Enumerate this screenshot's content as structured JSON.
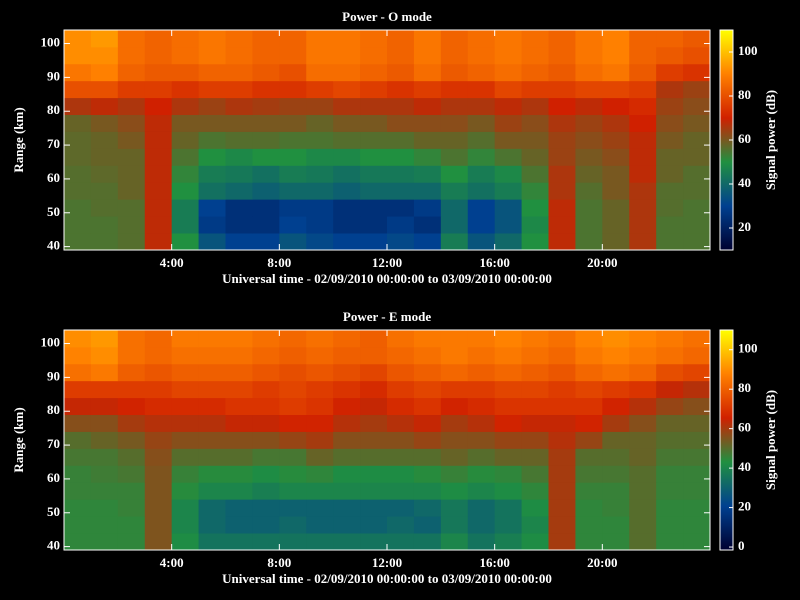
{
  "chart_data": [
    {
      "type": "heatmap",
      "title": "Power - O mode",
      "xlabel": "Universal time - 02/09/2010 00:00:00 to 03/09/2010 00:00:00",
      "ylabel": "Range (km)",
      "colorbar_label": "Signal power (dB)",
      "xlim": [
        0,
        24
      ],
      "xticks": [
        {
          "value": 4,
          "label": "4:00"
        },
        {
          "value": 8,
          "label": "8:00"
        },
        {
          "value": 12,
          "label": "12:00"
        },
        {
          "value": 16,
          "label": "16:00"
        },
        {
          "value": 20,
          "label": "20:00"
        }
      ],
      "ylim": [
        39,
        104
      ],
      "yticks": [
        40,
        50,
        60,
        70,
        80,
        90,
        100
      ],
      "clim": [
        10,
        110
      ],
      "cticks": [
        20,
        40,
        60,
        80,
        100
      ],
      "colormap": [
        "#000030",
        "#004090",
        "#209040",
        "#d02000",
        "#ff8000",
        "#ffff00"
      ],
      "xbins": [
        0,
        1,
        2,
        3,
        4,
        5,
        6,
        7,
        8,
        9,
        10,
        11,
        12,
        13,
        14,
        15,
        16,
        17,
        18,
        19,
        20,
        21,
        22,
        23,
        24
      ],
      "ybins": [
        39,
        44,
        49,
        54,
        59,
        64,
        69,
        74,
        79,
        84,
        89,
        94,
        99,
        104
      ],
      "z": [
        [
          55,
          55,
          56,
          68,
          50,
          35,
          30,
          30,
          35,
          32,
          30,
          30,
          32,
          30,
          45,
          35,
          40,
          50,
          68,
          55,
          58,
          66,
          55,
          55
        ],
        [
          55,
          55,
          56,
          68,
          45,
          28,
          25,
          25,
          30,
          28,
          25,
          25,
          28,
          25,
          40,
          30,
          35,
          48,
          68,
          55,
          58,
          66,
          55,
          55
        ],
        [
          55,
          56,
          56,
          68,
          45,
          30,
          25,
          25,
          28,
          28,
          25,
          25,
          25,
          28,
          40,
          30,
          35,
          50,
          68,
          55,
          58,
          66,
          56,
          55
        ],
        [
          56,
          56,
          58,
          68,
          50,
          42,
          40,
          38,
          40,
          40,
          38,
          40,
          40,
          40,
          45,
          42,
          45,
          52,
          66,
          56,
          60,
          66,
          56,
          56
        ],
        [
          56,
          57,
          58,
          68,
          52,
          45,
          44,
          42,
          45,
          44,
          42,
          44,
          44,
          45,
          50,
          45,
          48,
          55,
          66,
          58,
          60,
          68,
          58,
          56
        ],
        [
          57,
          58,
          58,
          68,
          55,
          50,
          48,
          50,
          50,
          48,
          48,
          50,
          50,
          52,
          55,
          52,
          55,
          58,
          64,
          60,
          62,
          68,
          58,
          58
        ],
        [
          57,
          58,
          60,
          68,
          58,
          55,
          56,
          56,
          55,
          55,
          56,
          56,
          56,
          58,
          58,
          56,
          60,
          60,
          64,
          62,
          64,
          68,
          60,
          58
        ],
        [
          58,
          60,
          62,
          68,
          60,
          60,
          60,
          60,
          60,
          58,
          60,
          60,
          62,
          62,
          62,
          60,
          64,
          62,
          66,
          64,
          66,
          70,
          62,
          60
        ],
        [
          66,
          68,
          66,
          70,
          66,
          64,
          66,
          65,
          64,
          64,
          66,
          66,
          66,
          68,
          66,
          66,
          68,
          66,
          70,
          68,
          70,
          72,
          64,
          62
        ],
        [
          80,
          80,
          76,
          76,
          74,
          76,
          76,
          74,
          74,
          76,
          78,
          76,
          74,
          76,
          74,
          74,
          78,
          76,
          76,
          78,
          78,
          76,
          66,
          64
        ],
        [
          88,
          90,
          84,
          82,
          82,
          84,
          84,
          82,
          80,
          86,
          86,
          84,
          82,
          86,
          82,
          84,
          86,
          84,
          82,
          86,
          88,
          82,
          76,
          74
        ],
        [
          92,
          92,
          86,
          84,
          86,
          88,
          86,
          84,
          84,
          88,
          88,
          86,
          84,
          88,
          84,
          86,
          88,
          86,
          84,
          88,
          90,
          84,
          82,
          80
        ],
        [
          92,
          94,
          86,
          84,
          86,
          88,
          86,
          84,
          84,
          88,
          88,
          86,
          84,
          88,
          84,
          86,
          88,
          86,
          84,
          88,
          90,
          84,
          84,
          82
        ]
      ]
    },
    {
      "type": "heatmap",
      "title": "Power - E mode",
      "xlabel": "Universal time - 02/09/2010 00:00:00 to 03/09/2010 00:00:00",
      "ylabel": "Range (km)",
      "colorbar_label": "Signal power (dB)",
      "xlim": [
        0,
        24
      ],
      "xticks": [
        {
          "value": 4,
          "label": "4:00"
        },
        {
          "value": 8,
          "label": "8:00"
        },
        {
          "value": 12,
          "label": "12:00"
        },
        {
          "value": 16,
          "label": "16:00"
        },
        {
          "value": 20,
          "label": "20:00"
        }
      ],
      "ylim": [
        39,
        104
      ],
      "yticks": [
        40,
        50,
        60,
        70,
        80,
        90,
        100
      ],
      "clim": [
        -1.5,
        110
      ],
      "cticks": [
        0,
        20,
        40,
        60,
        80,
        100
      ],
      "colormap": [
        "#000030",
        "#004090",
        "#209040",
        "#d02000",
        "#ff8000",
        "#ffff00"
      ],
      "xbins": [
        0,
        1,
        2,
        3,
        4,
        5,
        6,
        7,
        8,
        9,
        10,
        11,
        12,
        13,
        14,
        15,
        16,
        17,
        18,
        19,
        20,
        21,
        22,
        23,
        24
      ],
      "ybins": [
        39,
        44,
        49,
        54,
        59,
        64,
        69,
        74,
        79,
        84,
        89,
        94,
        99,
        104
      ],
      "z": [
        [
          45,
          45,
          45,
          55,
          42,
          35,
          35,
          35,
          35,
          35,
          35,
          35,
          35,
          35,
          40,
          35,
          38,
          42,
          60,
          45,
          45,
          50,
          45,
          45
        ],
        [
          45,
          45,
          45,
          55,
          40,
          32,
          30,
          30,
          32,
          30,
          30,
          30,
          32,
          30,
          36,
          32,
          35,
          40,
          60,
          45,
          45,
          50,
          45,
          45
        ],
        [
          45,
          45,
          46,
          55,
          40,
          32,
          30,
          30,
          30,
          30,
          30,
          30,
          30,
          32,
          36,
          32,
          35,
          42,
          60,
          45,
          46,
          50,
          45,
          45
        ],
        [
          46,
          46,
          46,
          55,
          44,
          40,
          40,
          38,
          40,
          40,
          40,
          40,
          40,
          40,
          42,
          40,
          42,
          45,
          60,
          46,
          46,
          50,
          46,
          46
        ],
        [
          46,
          47,
          48,
          55,
          46,
          44,
          44,
          42,
          44,
          45,
          42,
          42,
          42,
          44,
          46,
          44,
          45,
          48,
          60,
          48,
          48,
          50,
          46,
          46
        ],
        [
          48,
          48,
          50,
          56,
          50,
          50,
          50,
          48,
          48,
          52,
          50,
          50,
          50,
          50,
          52,
          50,
          52,
          52,
          60,
          50,
          50,
          52,
          48,
          48
        ],
        [
          50,
          52,
          54,
          58,
          56,
          56,
          56,
          56,
          58,
          60,
          56,
          56,
          56,
          58,
          56,
          56,
          58,
          58,
          62,
          58,
          52,
          52,
          50,
          50
        ],
        [
          56,
          56,
          60,
          62,
          62,
          62,
          64,
          64,
          66,
          66,
          62,
          60,
          62,
          64,
          60,
          62,
          66,
          64,
          64,
          66,
          60,
          56,
          52,
          52
        ],
        [
          64,
          64,
          66,
          68,
          68,
          68,
          70,
          70,
          72,
          70,
          66,
          64,
          68,
          70,
          66,
          68,
          70,
          70,
          70,
          70,
          66,
          62,
          58,
          56
        ],
        [
          72,
          72,
          72,
          72,
          74,
          74,
          74,
          72,
          74,
          72,
          70,
          68,
          72,
          74,
          72,
          72,
          74,
          74,
          72,
          74,
          72,
          70,
          64,
          62
        ],
        [
          84,
          86,
          80,
          78,
          80,
          80,
          80,
          78,
          76,
          78,
          76,
          74,
          78,
          80,
          82,
          80,
          82,
          80,
          78,
          82,
          84,
          82,
          76,
          74
        ],
        [
          88,
          90,
          84,
          82,
          84,
          84,
          84,
          82,
          80,
          82,
          80,
          80,
          82,
          84,
          86,
          84,
          86,
          84,
          82,
          86,
          88,
          86,
          84,
          82
        ],
        [
          90,
          92,
          84,
          82,
          86,
          86,
          86,
          84,
          82,
          84,
          82,
          80,
          84,
          86,
          86,
          86,
          88,
          86,
          84,
          88,
          90,
          88,
          86,
          84
        ]
      ]
    }
  ]
}
